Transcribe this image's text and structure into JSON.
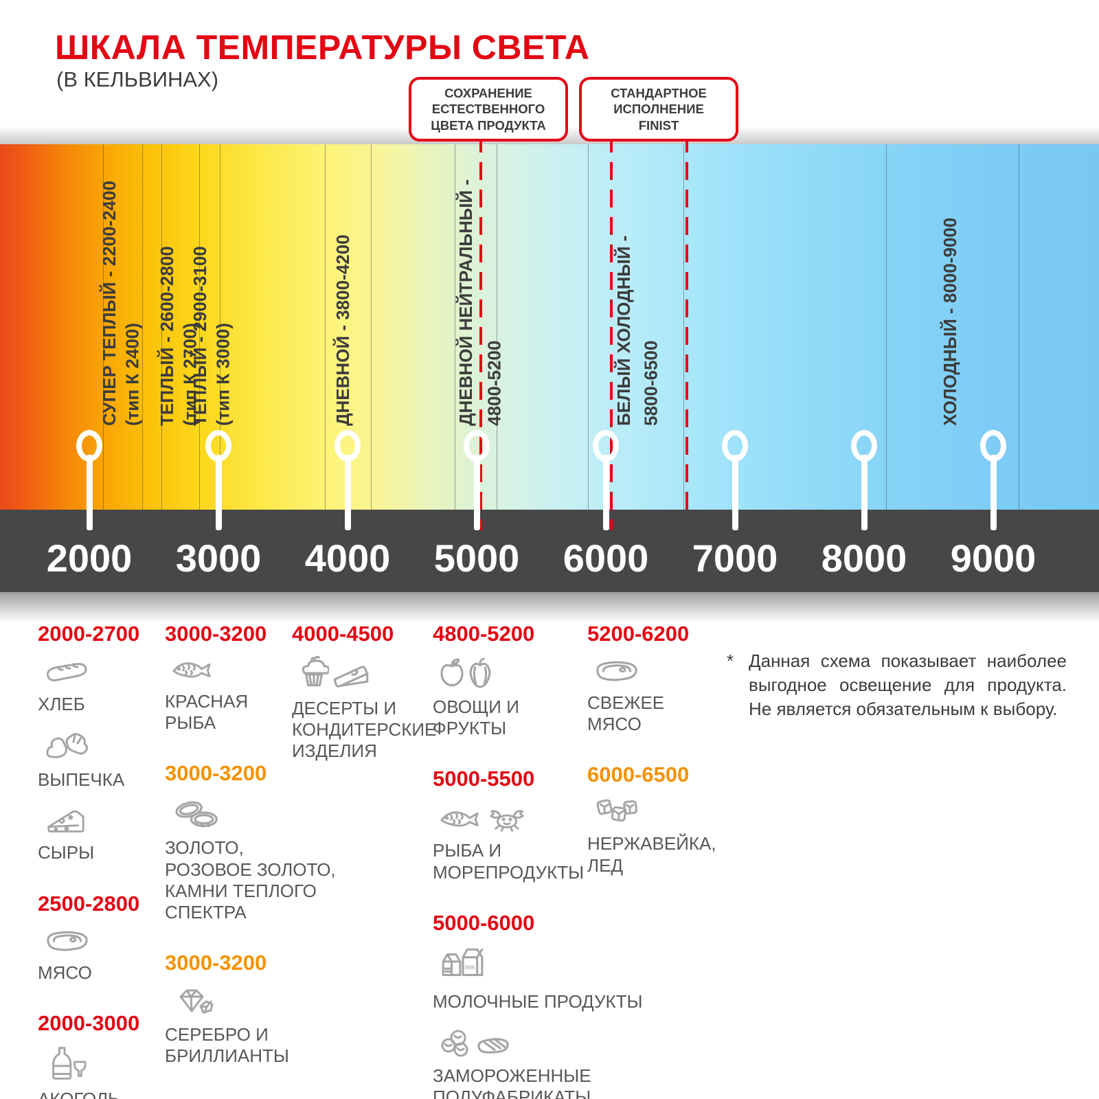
{
  "title": "ШКАЛА ТЕМПЕРАТУРЫ СВЕТА",
  "subtitle": "(В КЕЛЬВИНАХ)",
  "colors": {
    "accent_red": "#e30613",
    "accent_orange": "#f39200",
    "axis_bar": "#474747"
  },
  "callouts": [
    {
      "id": "natural-color",
      "text": "СОХРАНЕНИЕ\nЕСТЕСТВЕННОГО\nЦВЕТА ПРОДУКТА"
    },
    {
      "id": "finist-standard",
      "text": "СТАНДАРТНОЕ\nИСПОЛНЕНИЕ\nFINIST"
    }
  ],
  "scale": {
    "unit": "K",
    "ticks": [
      "2000",
      "3000",
      "4000",
      "5000",
      "6000",
      "7000",
      "8000",
      "9000"
    ],
    "zones": [
      {
        "label": "СУПЕР ТЕПЛЫЙ - 2200-2400",
        "sub": "(тип К 2400)"
      },
      {
        "label": "ТЕПЛЫЙ - 2600-2800",
        "sub": "(тип К 2700)"
      },
      {
        "label": "ТЕПЛЫЙ - 2900-3100",
        "sub": "(тип К 3000)"
      },
      {
        "label": "ДНЕВНОЙ - 3800-4200",
        "sub": ""
      },
      {
        "label": "ДНЕВНОЙ НЕЙТРАЛЬНЫЙ -",
        "sub": "4800-5200"
      },
      {
        "label": "БЕЛЫЙ ХОЛОДНЫЙ -",
        "sub": "5800-6500"
      },
      {
        "label": "ХОЛОДНЫЙ - 8000-9000",
        "sub": ""
      }
    ]
  },
  "columns": [
    {
      "items": [
        {
          "type": "range",
          "color": "red",
          "text": "2000-2700"
        },
        {
          "type": "entry",
          "icons": [
            "bread-icon"
          ],
          "label": "ХЛЕБ"
        },
        {
          "type": "entry",
          "icons": [
            "croissant-icon"
          ],
          "label": "ВЫПЕЧКА"
        },
        {
          "type": "entry",
          "icons": [
            "cheese-icon"
          ],
          "label": "СЫРЫ"
        },
        {
          "type": "range",
          "color": "red",
          "text": "2500-2800"
        },
        {
          "type": "entry",
          "icons": [
            "meat-steak-icon"
          ],
          "label": "МЯСО"
        },
        {
          "type": "range",
          "color": "red",
          "text": "2000-3000"
        },
        {
          "type": "entry",
          "icons": [
            "bottle-wine-icon"
          ],
          "label": "АКОГОЛЬ"
        }
      ]
    },
    {
      "items": [
        {
          "type": "range",
          "color": "red",
          "text": "3000-3200"
        },
        {
          "type": "entry",
          "icons": [
            "fish-icon"
          ],
          "label": "КРАСНАЯ\nРЫБА"
        },
        {
          "type": "range",
          "color": "orange",
          "text": "3000-3200"
        },
        {
          "type": "entry",
          "icons": [
            "rings-icon"
          ],
          "label": "ЗОЛОТО,\nРОЗОВОЕ ЗОЛОТО,\nКАМНИ ТЕПЛОГО\nСПЕКТРА"
        },
        {
          "type": "range",
          "color": "orange",
          "text": "3000-3200"
        },
        {
          "type": "entry",
          "icons": [
            "diamond-icon"
          ],
          "label": "СЕРЕБРО И\nБРИЛЛИАНТЫ"
        }
      ]
    },
    {
      "items": [
        {
          "type": "range",
          "color": "red",
          "text": "4000-4500"
        },
        {
          "type": "entry",
          "icons": [
            "cupcake-icon",
            "cake-slice-icon"
          ],
          "label": "ДЕСЕРТЫ И\nКОНДИТЕРСКИЕ\nИЗДЕЛИЯ"
        }
      ]
    },
    {
      "items": [
        {
          "type": "range",
          "color": "red",
          "text": "4800-5200"
        },
        {
          "type": "entry",
          "icons": [
            "apple-icon",
            "pepper-icon"
          ],
          "label": "ОВОЩИ И\nФРУКТЫ"
        },
        {
          "type": "range",
          "color": "red",
          "text": "5000-5500"
        },
        {
          "type": "entry",
          "icons": [
            "fish-icon",
            "crab-icon"
          ],
          "label": "РЫБА И\nМОРЕПРОДУКТЫ"
        },
        {
          "type": "range",
          "color": "red",
          "text": "5000-6000"
        },
        {
          "type": "entry",
          "icons": [
            "milk-carton-icon"
          ],
          "label": "МОЛОЧНЫЕ ПРОДУКТЫ"
        },
        {
          "type": "entry",
          "icons": [
            "dumplings-icon",
            "grilled-steak-icon"
          ],
          "label": "ЗАМОРОЖЕННЫЕ\nПОЛУФАБРИКАТЫ"
        }
      ]
    },
    {
      "items": [
        {
          "type": "range",
          "color": "red",
          "text": "5200-6200"
        },
        {
          "type": "entry",
          "icons": [
            "meat-steak-icon"
          ],
          "label": "СВЕЖЕЕ\nМЯСО"
        },
        {
          "type": "range",
          "color": "orange",
          "text": "6000-6500"
        },
        {
          "type": "entry",
          "icons": [
            "ice-cubes-icon"
          ],
          "label": "НЕРЖАВЕЙКА,\nЛЕД"
        }
      ]
    }
  ],
  "footnote": {
    "marker": "*",
    "text": "Данная схема показывает наиболее выгодное освещение для продукта. Не является обязательным к выбору."
  },
  "icon_texts": {
    "milk": "Milk"
  }
}
